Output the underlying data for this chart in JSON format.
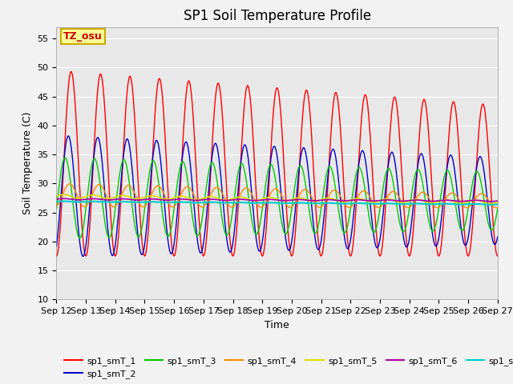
{
  "title": "SP1 Soil Temperature Profile",
  "xlabel": "Time",
  "ylabel": "Soil Temperature (C)",
  "ylim": [
    10,
    57
  ],
  "yticks": [
    10,
    15,
    20,
    25,
    30,
    35,
    40,
    45,
    50,
    55
  ],
  "date_labels": [
    "Sep 12",
    "Sep 13",
    "Sep 14",
    "Sep 15",
    "Sep 16",
    "Sep 17",
    "Sep 18",
    "Sep 19",
    "Sep 20",
    "Sep 21",
    "Sep 22",
    "Sep 23",
    "Sep 24",
    "Sep 25",
    "Sep 26",
    "Sep 27"
  ],
  "colors": {
    "sp1_smT_1": "#FF0000",
    "sp1_smT_2": "#0000CC",
    "sp1_smT_3": "#00CC00",
    "sp1_smT_4": "#FF8800",
    "sp1_smT_5": "#DDDD00",
    "sp1_smT_6": "#AA00AA",
    "sp1_smT_7": "#00CCCC"
  },
  "annotation_text": "TZ_osu",
  "annotation_bg": "#FFFF99",
  "annotation_border": "#CCAA00",
  "fig_bg": "#F2F2F2",
  "plot_bg": "#E8E8E8",
  "grid_color": "#FFFFFF"
}
